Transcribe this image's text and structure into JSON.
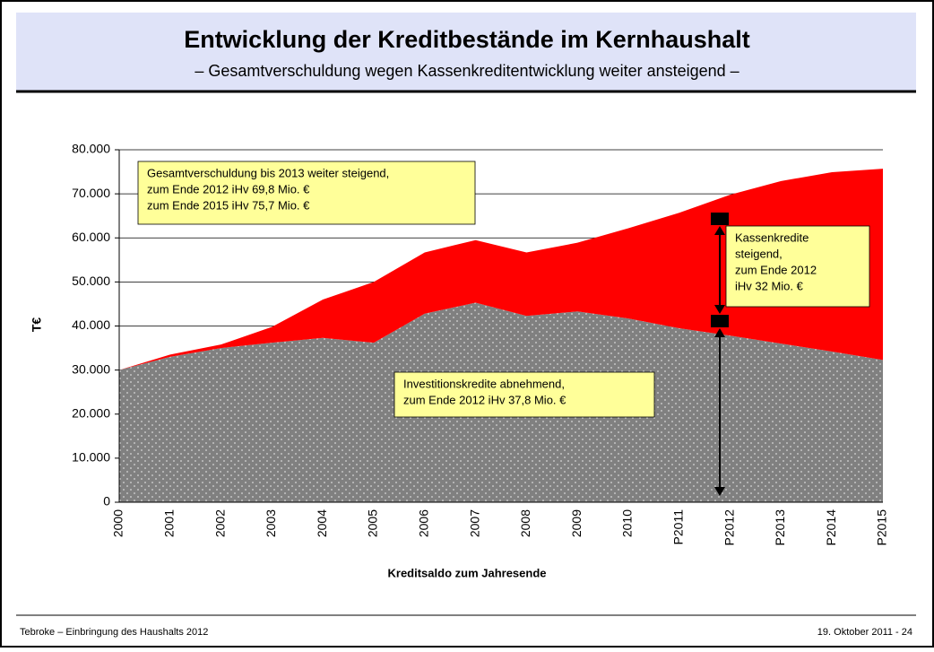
{
  "header": {
    "title": "Entwicklung der Kreditbestände im Kernhaushalt",
    "subtitle": "– Gesamtverschuldung wegen Kassenkreditentwicklung weiter ansteigend –"
  },
  "chart_data": {
    "type": "stacked-area",
    "x_label": "Kreditsaldo zum Jahresende",
    "y_label": "T€",
    "categories": [
      "2000",
      "2001",
      "2002",
      "2003",
      "2004",
      "2005",
      "2006",
      "2007",
      "2008",
      "2009",
      "2010",
      "P2011",
      "P2012",
      "P2013",
      "P2014",
      "P2015"
    ],
    "series": [
      {
        "color": "#808080",
        "values": [
          30000,
          33000,
          35000,
          36200,
          37300,
          36200,
          42800,
          45300,
          42300,
          43300,
          41700,
          39500,
          37800,
          36000,
          34200,
          32300
        ]
      },
      {
        "color": "#ff0000",
        "values": [
          0,
          500,
          800,
          3600,
          8700,
          13800,
          13900,
          14200,
          14400,
          15600,
          20500,
          26200,
          32000,
          36900,
          40700,
          43400
        ]
      }
    ],
    "ylim": [
      0,
      80000
    ],
    "yticks": [
      0,
      {
        "value": 10000,
        "label": "10.000"
      },
      {
        "value": 20000,
        "label": "20.000"
      },
      {
        "value": 30000,
        "label": "30.000"
      },
      {
        "value": 40000,
        "label": "40.000"
      },
      {
        "value": 50000,
        "label": "50.000"
      },
      {
        "value": 60000,
        "label": "60.000"
      },
      {
        "value": 70000,
        "label": "70.000"
      },
      {
        "value": 80000,
        "label": "80.000"
      }
    ],
    "grid": true,
    "annotations": [
      {
        "lines": [
          "Gesamtverschuldung bis 2013 weiter steigend,",
          "zum Ende 2012 iHv 69,8 Mio. €",
          "zum Ende 2015 iHv 75,7 Mio. €"
        ]
      },
      {
        "lines": [
          "Kassenkredite",
          "steigend,",
          "zum Ende 2012",
          "iHv 32 Mio. €"
        ]
      },
      {
        "lines": [
          "Investitionskredite abnehmend,",
          "zum Ende 2012 iHv 37,8 Mio. €"
        ]
      }
    ]
  },
  "footer": {
    "left": "Tebroke – Einbringung des Haushalts 2012",
    "right": "19. Oktober 2011 - 24"
  }
}
